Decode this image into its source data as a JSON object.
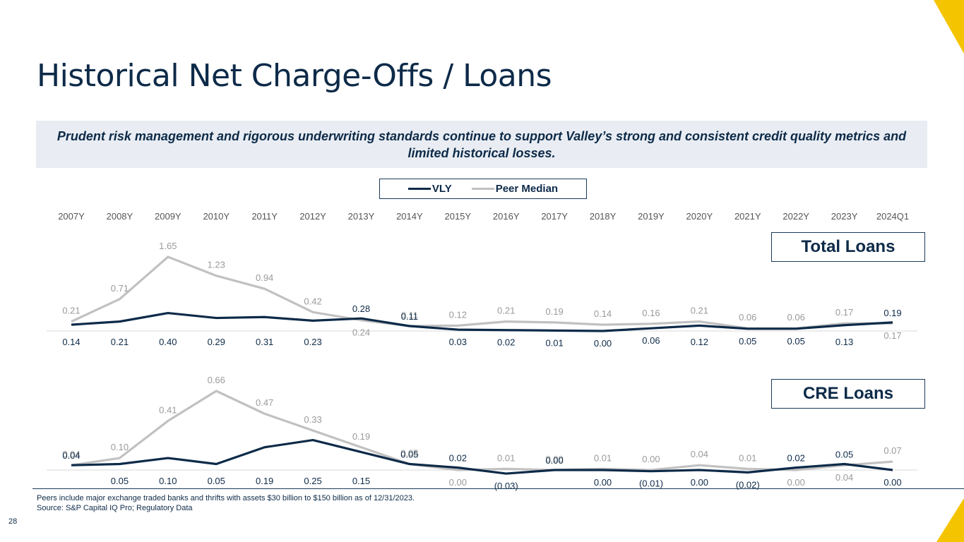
{
  "slide": {
    "title": "Historical Net Charge-Offs / Loans",
    "banner": "Prudent risk management and rigorous underwriting standards continue to support Valley’s strong and consistent credit quality metrics and limited historical losses.",
    "footnote_1": "Peers include major exchange traded banks and thrifts with assets $30 billion to $150 billion as of 12/31/2023.",
    "footnote_2": "Source: S&P Capital IQ Pro; Regulatory Data",
    "page_number": "28",
    "accent_color": "#f5c400"
  },
  "legend": [
    {
      "name": "VLY",
      "color": "#0d2a48"
    },
    {
      "name": "Peer Median",
      "color": "#c1c1c1"
    }
  ],
  "chart_data": [
    {
      "type": "line",
      "title": "Total Loans",
      "categories": [
        "2007Y",
        "2008Y",
        "2009Y",
        "2010Y",
        "2011Y",
        "2012Y",
        "2013Y",
        "2014Y",
        "2015Y",
        "2016Y",
        "2017Y",
        "2018Y",
        "2019Y",
        "2020Y",
        "2021Y",
        "2022Y",
        "2023Y",
        "2024Q1"
      ],
      "ylim": [
        0,
        1.65
      ],
      "series": [
        {
          "name": "VLY",
          "color": "#0d2a48",
          "values": [
            0.14,
            0.21,
            0.4,
            0.29,
            0.31,
            0.23,
            0.28,
            0.11,
            0.03,
            0.02,
            0.01,
            0.0,
            0.06,
            0.12,
            0.05,
            0.05,
            0.13,
            0.19
          ],
          "labels": [
            "0.14",
            "0.21",
            "0.40",
            "0.29",
            "0.31",
            "0.23",
            "0.28",
            "0.11",
            "0.03",
            "0.02",
            "0.01",
            "0.00",
            "0.06",
            "0.12",
            "0.05",
            "0.05",
            "0.13",
            "0.19"
          ]
        },
        {
          "name": "Peer Median",
          "color": "#c1c1c1",
          "values": [
            0.21,
            0.71,
            1.65,
            1.23,
            0.94,
            0.42,
            0.24,
            0.11,
            0.12,
            0.21,
            0.19,
            0.14,
            0.16,
            0.21,
            0.06,
            0.06,
            0.17,
            0.17
          ],
          "labels": [
            "0.21",
            "0.71",
            "1.65",
            "1.23",
            "0.94",
            "0.42",
            "0.24",
            "0.11",
            "0.12",
            "0.21",
            "0.19",
            "0.14",
            "0.16",
            "0.21",
            "0.06",
            "0.06",
            "0.17",
            "0.17"
          ]
        }
      ]
    },
    {
      "type": "line",
      "title": "CRE Loans",
      "categories": [
        "2007Y",
        "2008Y",
        "2009Y",
        "2010Y",
        "2011Y",
        "2012Y",
        "2013Y",
        "2014Y",
        "2015Y",
        "2016Y",
        "2017Y",
        "2018Y",
        "2019Y",
        "2020Y",
        "2021Y",
        "2022Y",
        "2023Y",
        "2024Q1"
      ],
      "ylim": [
        -0.03,
        0.66
      ],
      "series": [
        {
          "name": "VLY",
          "color": "#0d2a48",
          "values": [
            0.04,
            0.05,
            0.1,
            0.05,
            0.19,
            0.25,
            0.15,
            0.05,
            0.02,
            -0.03,
            0.0,
            0.0,
            -0.01,
            0.0,
            -0.02,
            0.02,
            0.05,
            0.0
          ],
          "labels": [
            "0.04",
            "0.05",
            "0.10",
            "0.05",
            "0.19",
            "0.25",
            "0.15",
            "0.05",
            "0.02",
            "(0.03)",
            "0.00",
            "0.00",
            "(0.01)",
            "0.00",
            "(0.02)",
            "0.02",
            "0.05",
            "0.00"
          ]
        },
        {
          "name": "Peer Median",
          "color": "#c1c1c1",
          "values": [
            0.04,
            0.1,
            0.41,
            0.66,
            0.47,
            0.33,
            0.19,
            0.05,
            0.0,
            0.01,
            0.0,
            0.01,
            0.0,
            0.04,
            0.01,
            0.0,
            0.04,
            0.07
          ],
          "labels": [
            "0.04",
            "0.10",
            "0.41",
            "0.66",
            "0.47",
            "0.33",
            "0.19",
            "0.05",
            "0.00",
            "0.01",
            "0.00",
            "0.01",
            "0.00",
            "0.04",
            "0.01",
            "0.00",
            "0.04",
            "0.07"
          ]
        }
      ]
    }
  ]
}
